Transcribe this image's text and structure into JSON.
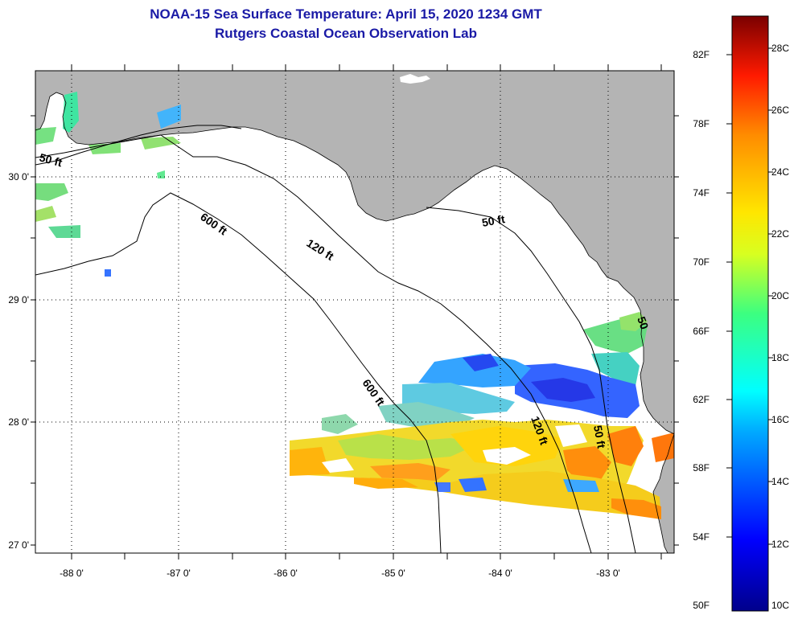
{
  "title_line1": "NOAA-15 Sea Surface Temperature:  April 15, 2020 1234 GMT",
  "title_line2": "Rutgers Coastal Ocean Observation Lab",
  "lat_labels": [
    "30 0'",
    "29 0'",
    "28 0'",
    "27 0'"
  ],
  "lon_labels": [
    "-88 0'",
    "-87 0'",
    "-86 0'",
    "-85 0'",
    "-84 0'",
    "-83 0'"
  ],
  "contour_labels": [
    "50 ft",
    "600 ft",
    "120 ft",
    "50 ft",
    "600 ft",
    "120 ft",
    "50 ft",
    "50"
  ],
  "colorbar_f": [
    "82F",
    "78F",
    "74F",
    "70F",
    "66F",
    "62F",
    "58F",
    "54F",
    "50F"
  ],
  "colorbar_c": [
    "28C",
    "26C",
    "24C",
    "22C",
    "20C",
    "18C",
    "16C",
    "14C",
    "12C",
    "10C"
  ],
  "colors": {
    "title": "#1a1aa6",
    "land": "#b4b4b4",
    "ocean": "#ffffff"
  }
}
